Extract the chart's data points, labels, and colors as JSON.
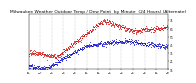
{
  "title": "Milwaukee Weather Outdoor Temp / Dew Point  by Minute  (24 Hours) (Alternate)",
  "title_fontsize": 3.2,
  "background_color": "#ffffff",
  "grid_color": "#999999",
  "red_color": "#cc0000",
  "blue_color": "#0000cc",
  "ylim": [
    11,
    79
  ],
  "ytick_vals": [
    11,
    21,
    31,
    41,
    51,
    61,
    71
  ],
  "minutes": 1440,
  "dot_size": 0.3,
  "dot_interval": 3
}
